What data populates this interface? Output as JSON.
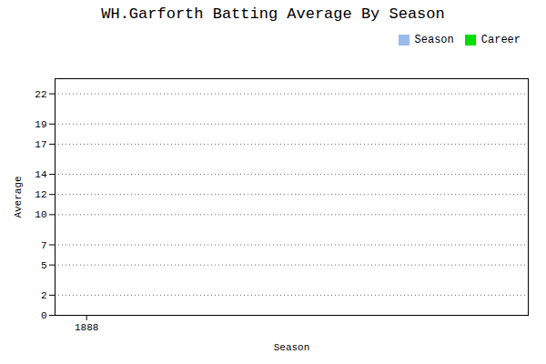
{
  "chart_data": {
    "type": "bar",
    "title": "WH.Garforth Batting Average By Season",
    "xlabel": "Season",
    "ylabel": "Average",
    "x": [],
    "series": [
      {
        "name": "Season",
        "color": "#99bbee",
        "values": []
      },
      {
        "name": "Career",
        "color": "#00dd00",
        "values": []
      }
    ],
    "xlim": [
      1887.5,
      1895
    ],
    "xticks": [
      1888
    ],
    "ylim": [
      0,
      23.5
    ],
    "yticks": [
      0,
      2,
      5,
      7,
      10,
      12,
      14,
      17,
      19,
      22
    ],
    "grid": "y",
    "legend": "upper right"
  }
}
